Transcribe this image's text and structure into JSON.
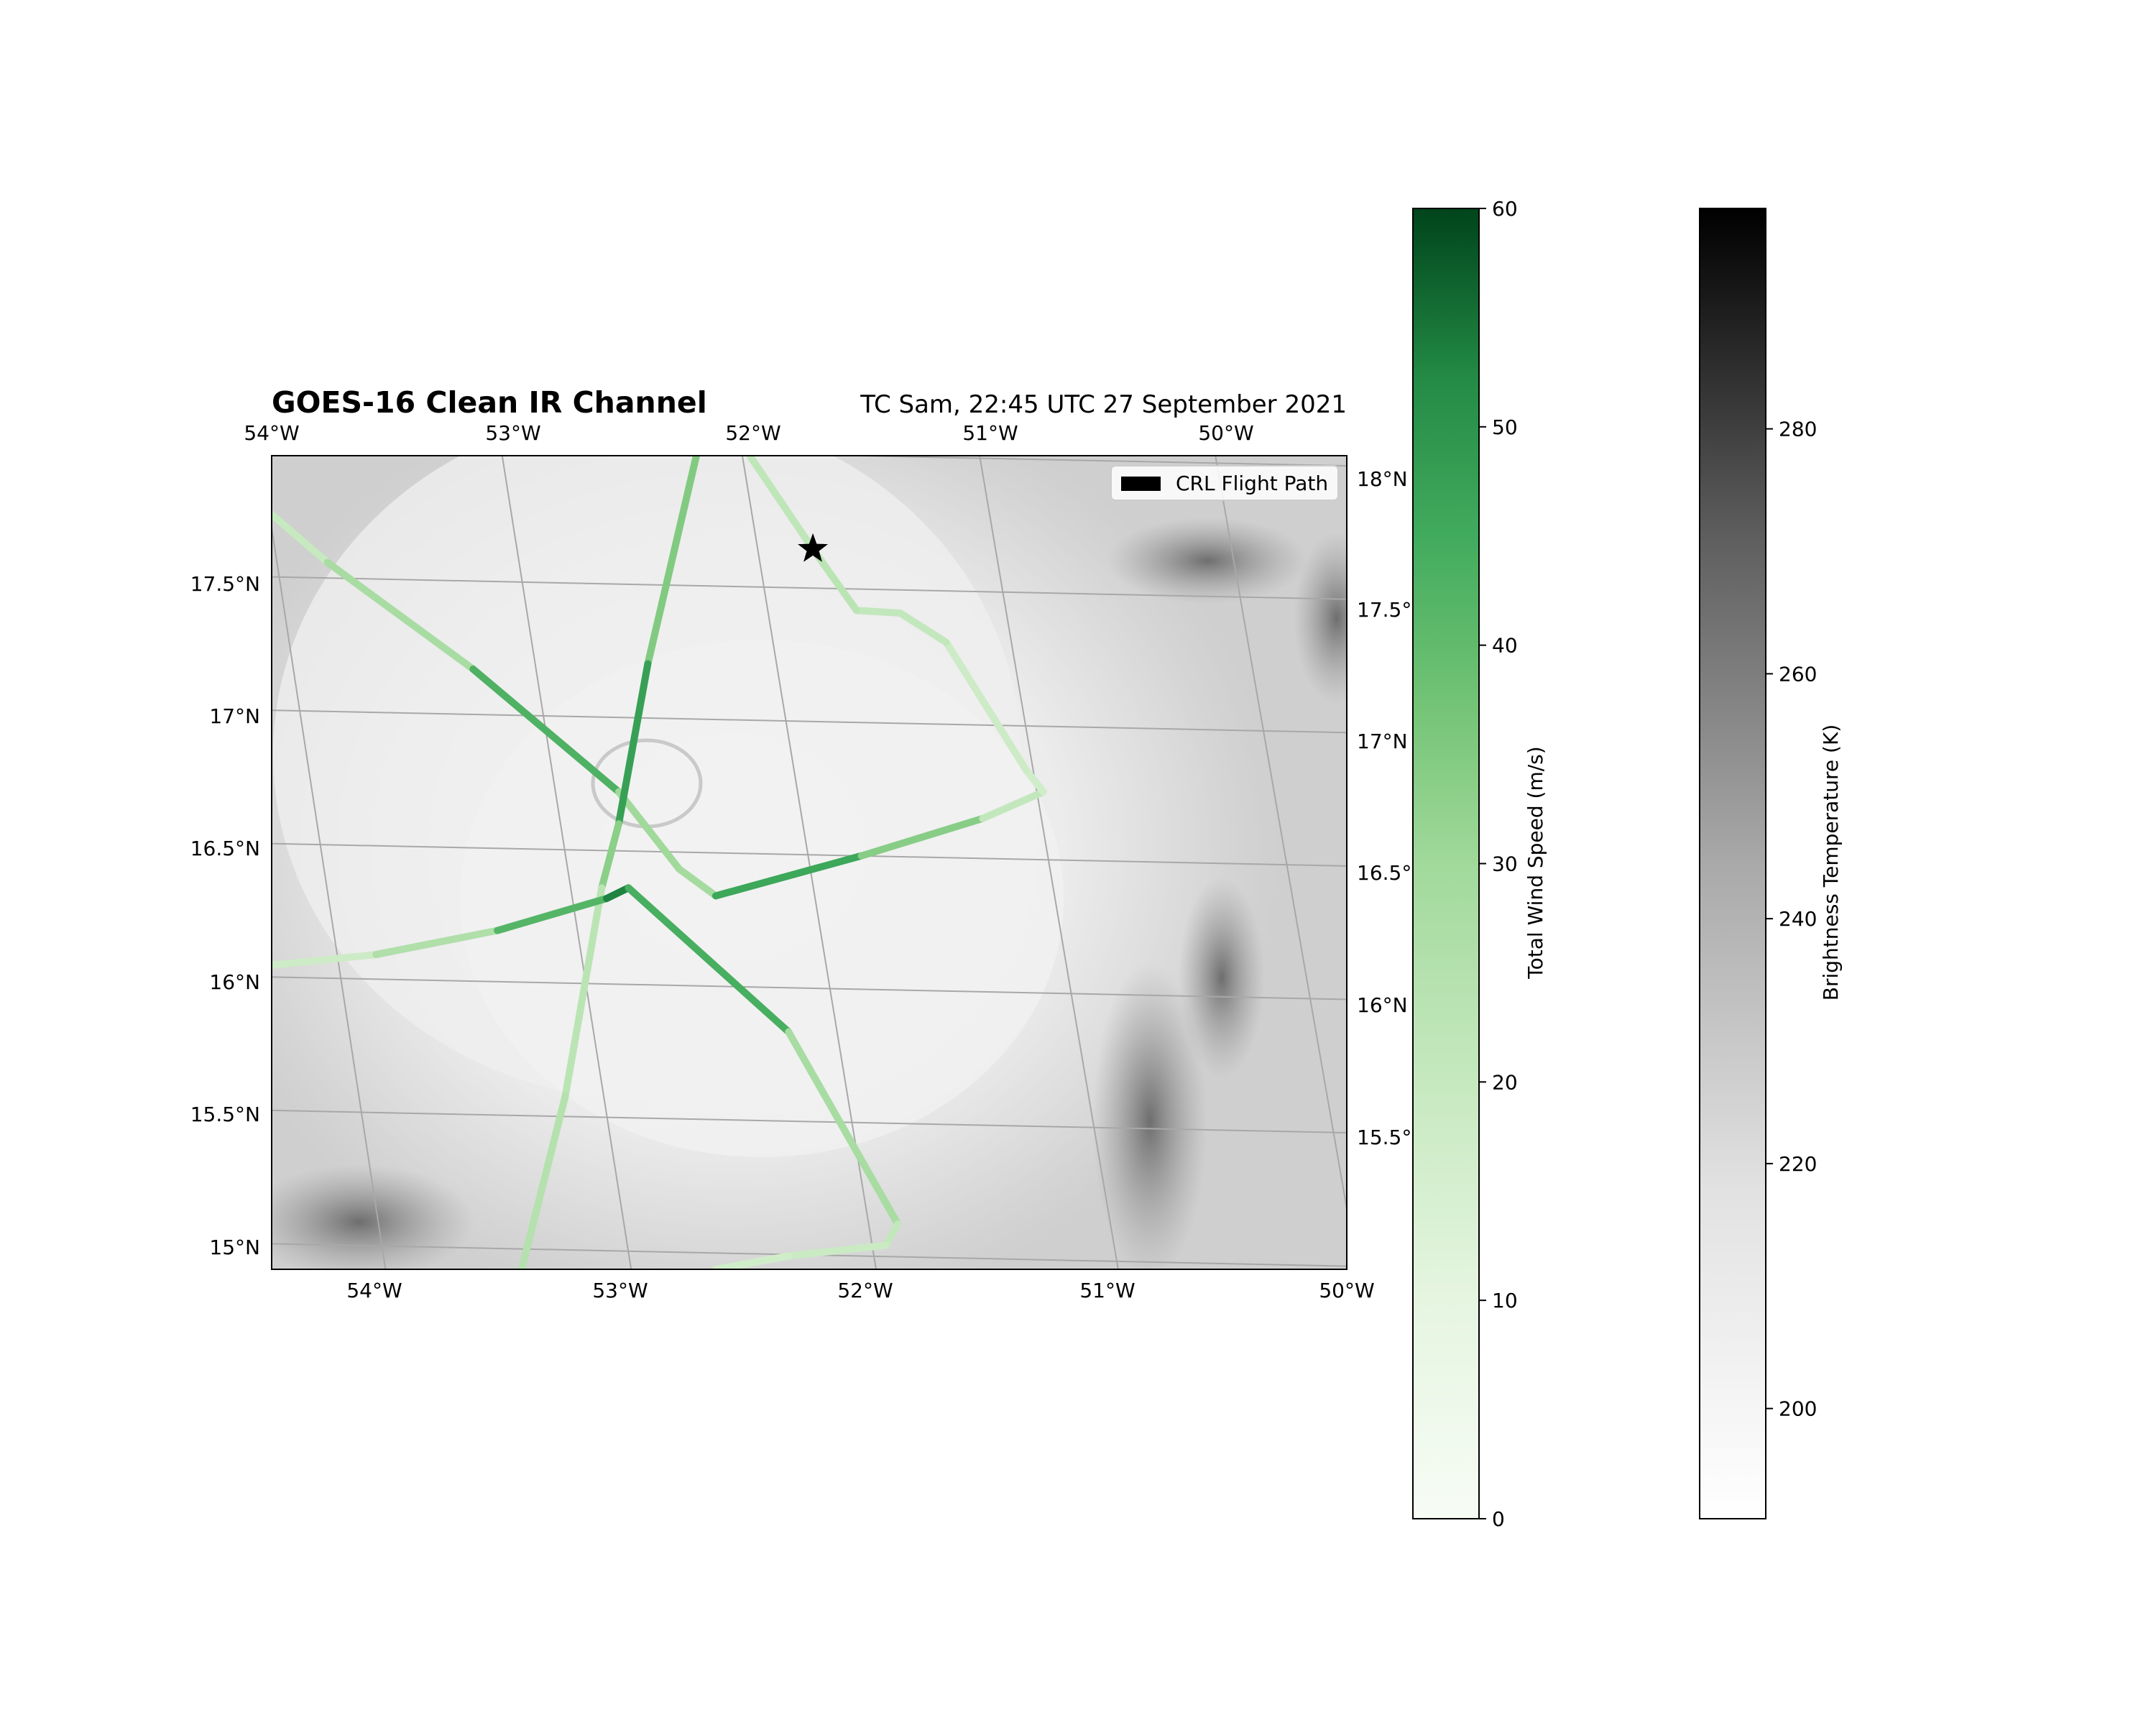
{
  "title_left": "GOES-16 Clean IR Channel",
  "title_right": "TC Sam, 22:45 UTC 27 September 2021",
  "legend": {
    "label": "CRL Flight Path",
    "swatch_color": "#000000",
    "position": "top-right"
  },
  "map": {
    "lon_range": [
      -54.43,
      -50.0
    ],
    "lat_range": [
      14.93,
      17.98
    ],
    "bottom_lon_ticks": [
      "54°W",
      "53°W",
      "52°W",
      "51°W",
      "50°W"
    ],
    "top_lon_ticks": [
      "54°W",
      "53°W",
      "52°W",
      "51°W",
      "50°W"
    ],
    "left_lat_ticks": [
      "17.5°N",
      "17°N",
      "16.5°N",
      "16°N",
      "15.5°N",
      "15°N"
    ],
    "right_lat_ticks": [
      "18°N",
      "17.5°",
      "17°N",
      "16.5°",
      "16°N",
      "15.5°"
    ],
    "gridlines": true,
    "star_marker": {
      "lon": -52.2,
      "lat": 17.63,
      "color": "#000000"
    }
  },
  "flight_track": {
    "colormap": "Greens",
    "segments": [
      {
        "lon": [
          -54.43,
          -54.2,
          -53.6,
          -53.0,
          -52.75,
          -52.6,
          -52.0,
          -51.5,
          -51.25
        ],
        "lat": [
          17.76,
          17.58,
          17.18,
          16.72,
          16.43,
          16.33,
          16.48,
          16.62,
          16.72
        ],
        "speed": [
          18,
          22,
          34,
          52,
          8,
          50,
          42,
          26,
          16
        ]
      },
      {
        "lon": [
          -51.25,
          -51.32,
          -51.65,
          -51.84,
          -52.02
        ],
        "lat": [
          16.72,
          16.8,
          17.28,
          17.39,
          17.4
        ],
        "speed": [
          18,
          16,
          20,
          22,
          20
        ]
      },
      {
        "lon": [
          -52.02,
          -52.2,
          -52.46
        ],
        "lat": [
          17.4,
          17.63,
          17.98
        ],
        "speed": [
          22,
          24,
          20
        ]
      },
      {
        "lon": [
          -52.68,
          -52.88,
          -53.0,
          -53.07,
          -53.22,
          -53.4
        ],
        "lat": [
          17.98,
          17.2,
          16.6,
          16.36,
          15.58,
          14.93
        ],
        "speed": [
          30,
          40,
          55,
          12,
          34,
          16
        ]
      },
      {
        "lon": [
          -54.43,
          -54.0,
          -53.5,
          -53.05,
          -52.96,
          -52.3,
          -51.85,
          -51.9,
          -52.3,
          -52.6
        ],
        "lat": [
          16.07,
          16.11,
          16.2,
          16.32,
          16.36,
          15.82,
          15.1,
          15.02,
          14.98,
          14.93
        ],
        "speed": [
          16,
          20,
          32,
          52,
          54,
          34,
          22,
          20,
          18,
          16
        ]
      }
    ]
  },
  "colorbar_wind": {
    "label": "Total Wind Speed (m/s)",
    "ticks": [
      "60",
      "50",
      "40",
      "30",
      "20",
      "10",
      "0"
    ],
    "range": [
      0,
      60
    ],
    "colormap": "Greens"
  },
  "colorbar_temp": {
    "label": "Brightness Temperature (K)",
    "ticks": [
      "280",
      "260",
      "240",
      "220",
      "200"
    ],
    "range": [
      191,
      298
    ],
    "colormap": "Greys"
  }
}
